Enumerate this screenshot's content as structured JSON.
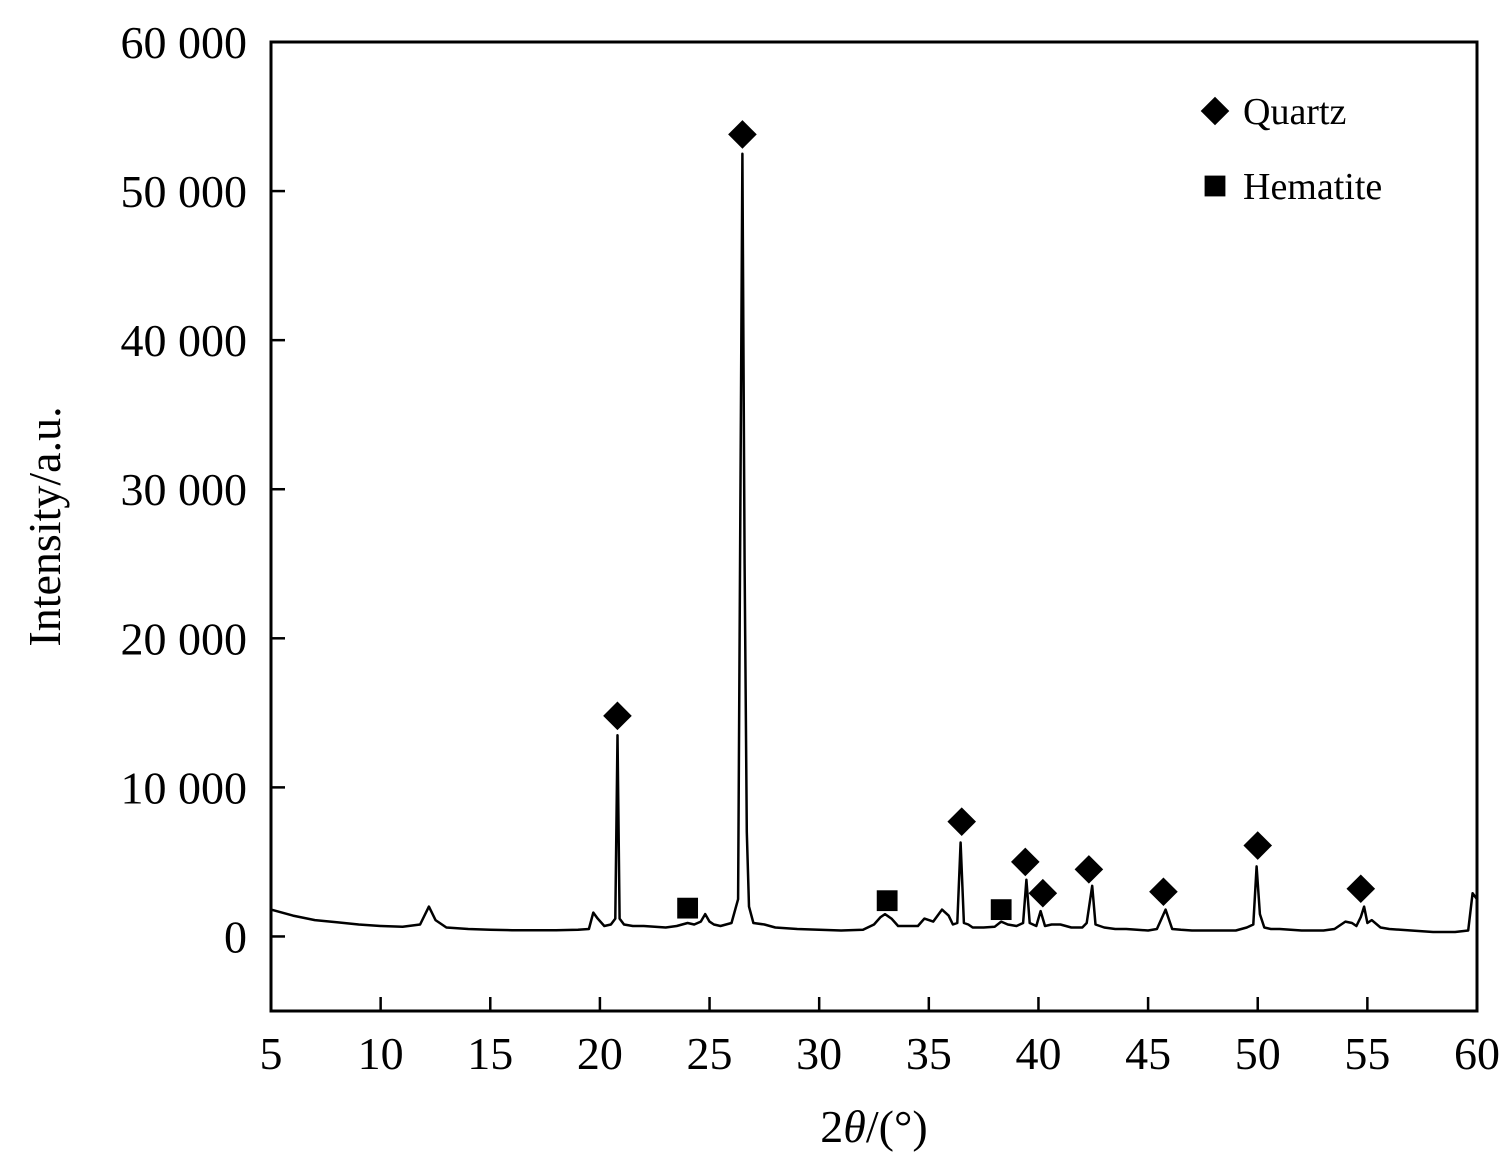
{
  "chart_data": {
    "type": "line",
    "title": "",
    "xlabel_prefix": "2",
    "xlabel_symbol": "θ",
    "xlabel_suffix": "/(°)",
    "ylabel": "Intensity/a.u.",
    "xlim": [
      5,
      60
    ],
    "ylim": [
      -5000,
      60000
    ],
    "x_ticks": [
      5,
      10,
      15,
      20,
      25,
      30,
      35,
      40,
      45,
      50,
      55,
      60
    ],
    "x_tick_labels": [
      "5",
      "10",
      "15",
      "20",
      "25",
      "30",
      "35",
      "40",
      "45",
      "50",
      "55",
      "60"
    ],
    "y_ticks": [
      0,
      10000,
      20000,
      30000,
      40000,
      50000,
      60000
    ],
    "y_tick_labels": [
      "0",
      "10 000",
      "20 000",
      "30 000",
      "40 000",
      "50 000",
      "60 000"
    ],
    "grid": false,
    "legend_position": "top-right",
    "line_color": "#000000",
    "series": [
      {
        "x": [
          5,
          6,
          7,
          8,
          9,
          10,
          11,
          11.8,
          12.2,
          12.5,
          13,
          14,
          15,
          16,
          17,
          18,
          19,
          19.5,
          19.7,
          19.9,
          20.2,
          20.5,
          20.7,
          20.8,
          20.9,
          21.1,
          21.5,
          22,
          23,
          23.5,
          24,
          24.3,
          24.6,
          24.8,
          25,
          25.2,
          25.5,
          26,
          26.3,
          26.5,
          26.6,
          26.7,
          26.8,
          27,
          27.5,
          28,
          29,
          30,
          31,
          32,
          32.5,
          32.8,
          33,
          33.3,
          33.6,
          34,
          34.5,
          34.8,
          35.2,
          35.6,
          35.9,
          36.1,
          36.3,
          36.45,
          36.6,
          36.8,
          37,
          37.5,
          38,
          38.3,
          38.6,
          39,
          39.3,
          39.45,
          39.6,
          39.9,
          40.1,
          40.3,
          40.6,
          41,
          41.5,
          42,
          42.2,
          42.45,
          42.6,
          43,
          43.5,
          44,
          44.5,
          45,
          45.4,
          45.8,
          46.1,
          46.5,
          47,
          48,
          49,
          49.5,
          49.8,
          49.95,
          50.1,
          50.3,
          50.6,
          51,
          52,
          53,
          53.5,
          54,
          54.3,
          54.5,
          54.7,
          54.85,
          55,
          55.2,
          55.6,
          56,
          57,
          58,
          59,
          59.6,
          59.8,
          60
        ],
        "y": [
          1800,
          1400,
          1100,
          950,
          800,
          700,
          650,
          800,
          2000,
          1100,
          600,
          500,
          450,
          420,
          420,
          420,
          450,
          500,
          1600,
          1200,
          700,
          800,
          1200,
          13500,
          1200,
          800,
          700,
          700,
          600,
          700,
          900,
          800,
          1000,
          1500,
          1000,
          800,
          700,
          900,
          2500,
          52500,
          25000,
          7000,
          2000,
          900,
          800,
          600,
          500,
          450,
          400,
          450,
          800,
          1300,
          1500,
          1200,
          700,
          700,
          700,
          1200,
          1000,
          1800,
          1400,
          800,
          900,
          6300,
          900,
          800,
          600,
          600,
          650,
          1000,
          800,
          700,
          900,
          3800,
          900,
          700,
          1700,
          700,
          800,
          800,
          600,
          600,
          900,
          3400,
          800,
          600,
          500,
          500,
          450,
          400,
          500,
          1800,
          500,
          450,
          400,
          400,
          400,
          600,
          800,
          4700,
          1500,
          600,
          500,
          500,
          400,
          400,
          500,
          1000,
          900,
          700,
          1300,
          2000,
          900,
          1100,
          600,
          500,
          400,
          300,
          300,
          400,
          2900,
          2500
        ]
      }
    ],
    "markers": {
      "Quartz": {
        "shape": "diamond",
        "positions": [
          [
            20.8,
            14800
          ],
          [
            26.5,
            53800
          ],
          [
            36.5,
            7700
          ],
          [
            39.4,
            5000
          ],
          [
            40.2,
            2900
          ],
          [
            42.3,
            4500
          ],
          [
            45.7,
            3000
          ],
          [
            50,
            6100
          ],
          [
            54.7,
            3200
          ]
        ]
      },
      "Hematite": {
        "shape": "square",
        "positions": [
          [
            24,
            1900
          ],
          [
            33.1,
            2400
          ],
          [
            38.3,
            1800
          ]
        ]
      }
    },
    "legend": [
      {
        "label": "Quartz",
        "shape": "diamond"
      },
      {
        "label": "Hematite",
        "shape": "square"
      }
    ]
  }
}
